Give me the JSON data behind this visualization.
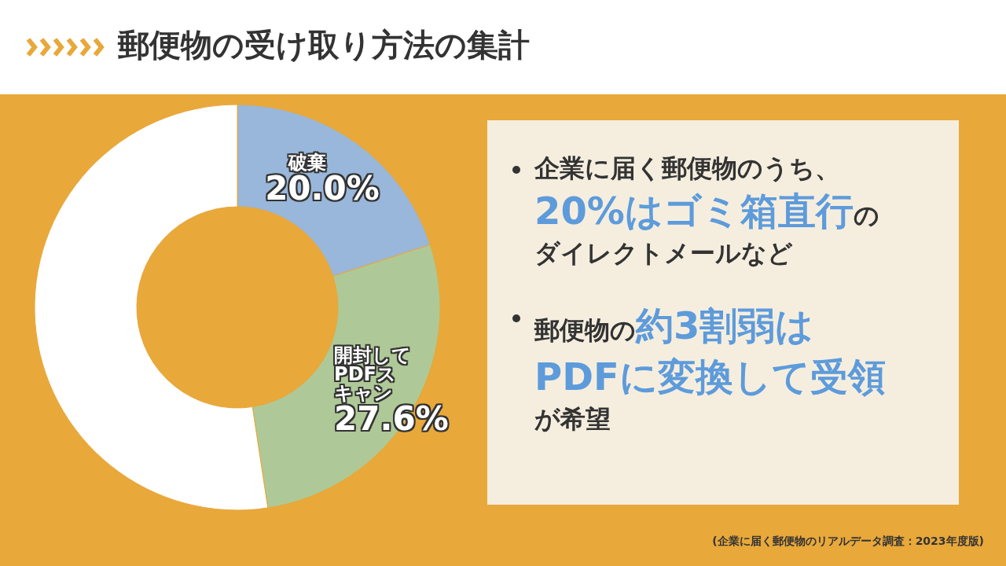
{
  "chart_data": [
    {
      "type": "donut",
      "title": "郵便物の受け取り方法の集計",
      "categories": [
        "破棄",
        "開封してPDFスキャン",
        null
      ],
      "values": [
        20.0,
        27.6,
        52.4
      ],
      "colors": [
        "#98b7da",
        "#aec997",
        "#ffffff"
      ],
      "value_labels": [
        "20.0%",
        "27.6%",
        null
      ],
      "annotations": [
        "(企業に届く郵便物のリアルデータ調査：2023年度版)"
      ]
    },
    {
      "type": "other",
      "annotations": [
        "企業に届く郵便物のうち、**20%はゴミ箱直行**のダイレクトメールなど",
        "郵便物の**約3割弱はPDFに変換して受領**が希望"
      ]
    }
  ]
}
